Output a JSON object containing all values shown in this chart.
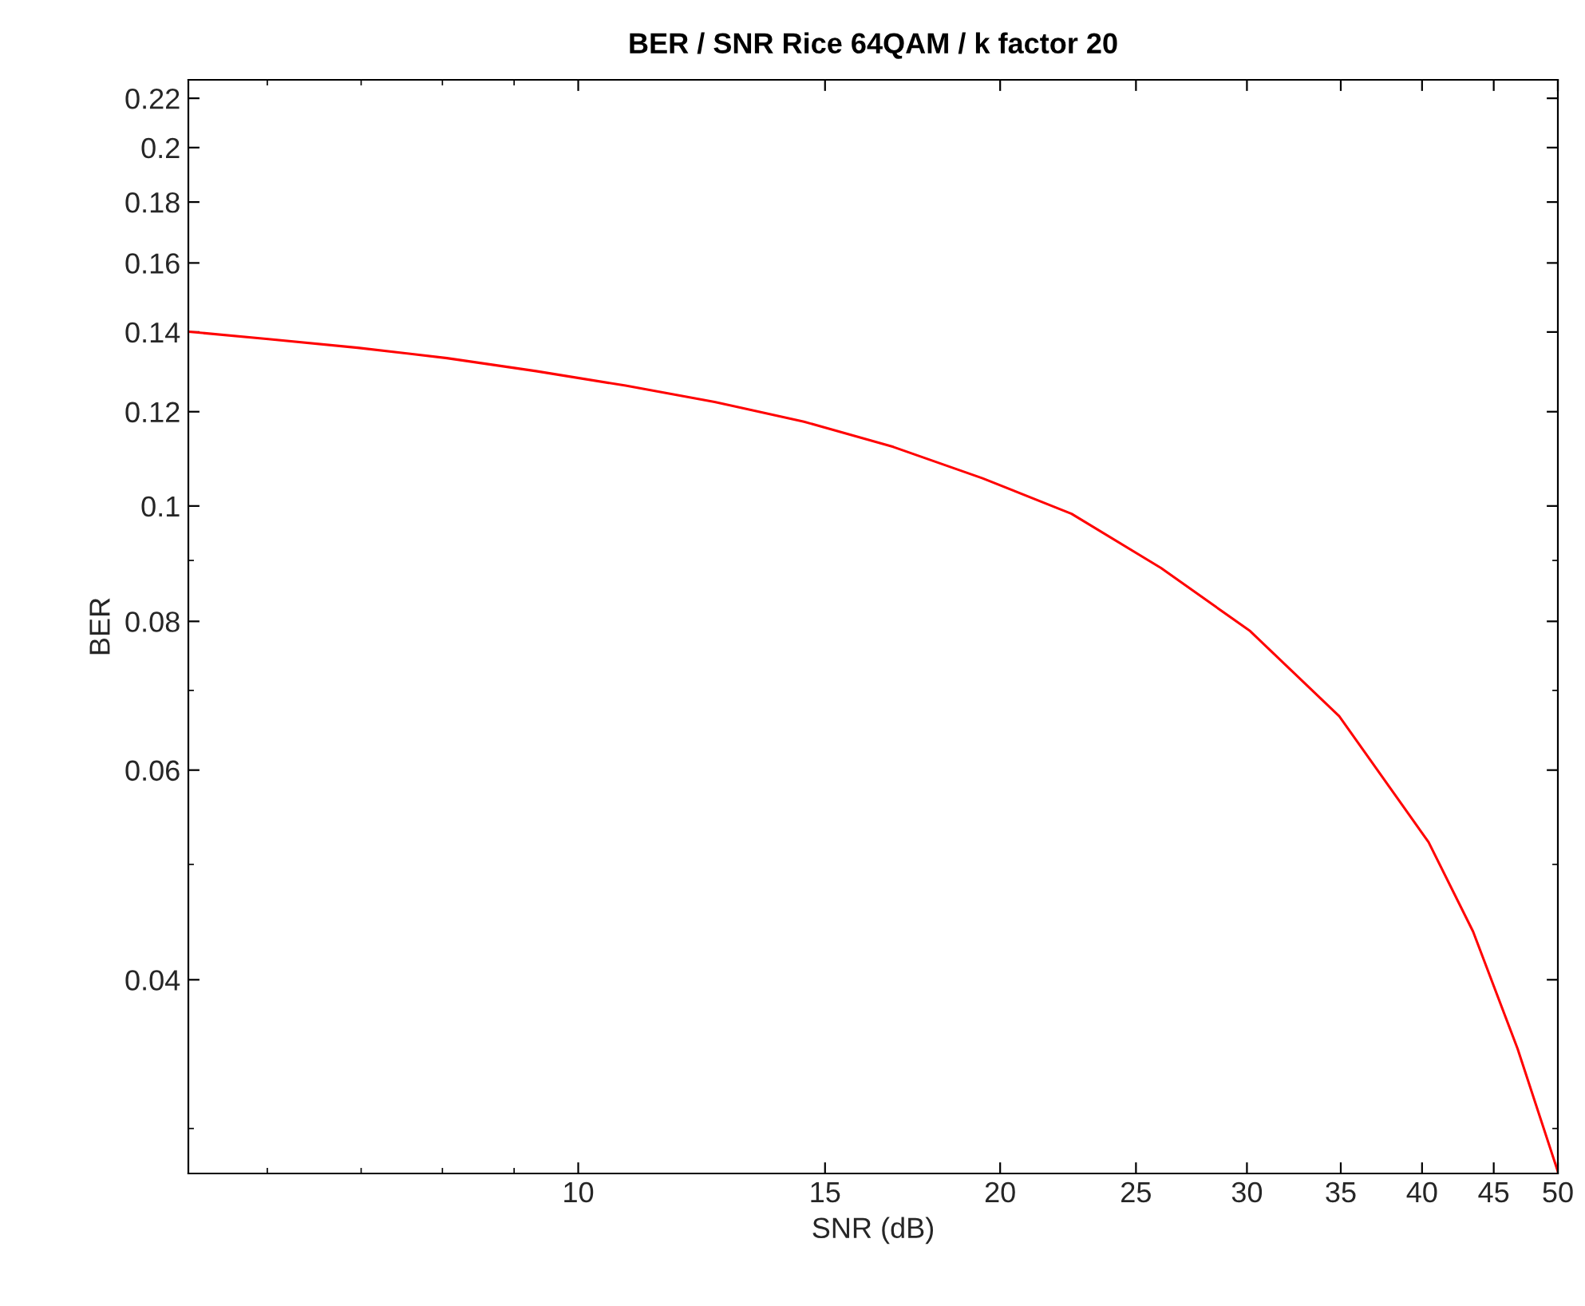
{
  "chart_data": {
    "type": "line",
    "title": "BER / SNR Rice 64QAM / k factor 20",
    "xlabel": "SNR (dB)",
    "ylabel": "BER",
    "log": "xy",
    "grid": false,
    "xlim": [
      5.27,
      50
    ],
    "ylim": [
      0.0275,
      0.228
    ],
    "xticks": [
      10,
      15,
      20,
      25,
      30,
      35,
      40,
      45,
      50
    ],
    "yticks": [
      0.04,
      0.06,
      0.08,
      0.1,
      0.12,
      0.14,
      0.16,
      0.18,
      0.2,
      0.22
    ],
    "series": [
      {
        "color": "#ff0000",
        "x": [
          5.27,
          6.01,
          6.96,
          8.06,
          9.33,
          10.81,
          12.51,
          14.49,
          16.78,
          19.43,
          22.49,
          26.05,
          30.16,
          34.91,
          40.43,
          43.5,
          46.8,
          50
        ],
        "values": [
          0.1401,
          0.1381,
          0.1358,
          0.1331,
          0.1298,
          0.1262,
          0.1223,
          0.1177,
          0.1121,
          0.1055,
          0.0985,
          0.0887,
          0.0785,
          0.0666,
          0.0522,
          0.0439,
          0.035,
          0.0276
        ]
      }
    ]
  }
}
